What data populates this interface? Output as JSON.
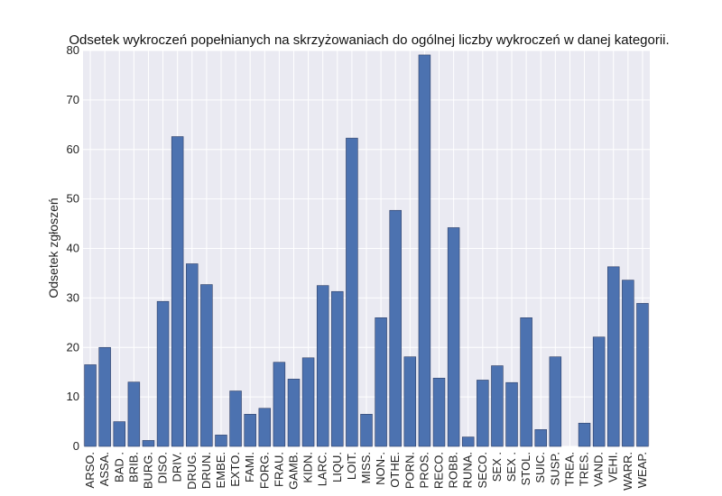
{
  "chart_data": {
    "type": "bar",
    "title": "Odsetek wykroczeń popełnianych na skrzyżowaniach do ogólnej liczby wykroczeń w danej kategorii.",
    "xlabel": "",
    "ylabel": "Odsetek zgłoszeń",
    "ylim": [
      0,
      80
    ],
    "yticks": [
      "0",
      "10",
      "20",
      "30",
      "40",
      "50",
      "60",
      "70",
      "80"
    ],
    "grid": true,
    "bar_color": "#4c72b0",
    "background_color": "#eaeaf2",
    "categories": [
      "ARSO.",
      "ASSA.",
      "BAD .",
      "BRIB.",
      "BURG.",
      "DISO.",
      "DRIV.",
      "DRUG.",
      "DRUN.",
      "EMBE.",
      "EXTO.",
      "FAMI.",
      "FORG.",
      "FRAU.",
      "GAMB.",
      "KIDN.",
      "LARC.",
      "LIQU.",
      "LOIT.",
      "MISS.",
      "NON-.",
      "OTHE.",
      "PORN.",
      "PROS.",
      "RECO.",
      "ROBB.",
      "RUNA.",
      "SECO.",
      "SEX .",
      "SEX .",
      "STOL.",
      "SUIC.",
      "SUSP.",
      "TREA.",
      "TRES.",
      "VAND.",
      "VEHI.",
      "WARR.",
      "WEAP."
    ],
    "values": [
      16.5,
      20.0,
      5.0,
      13.0,
      1.2,
      29.3,
      62.6,
      36.9,
      32.7,
      2.3,
      11.2,
      6.5,
      7.7,
      17.0,
      13.6,
      17.9,
      32.5,
      31.3,
      62.3,
      6.5,
      26.0,
      47.7,
      18.1,
      79.1,
      13.8,
      44.2,
      1.9,
      13.4,
      16.3,
      12.9,
      26.0,
      3.4,
      18.1,
      0,
      4.7,
      22.1,
      36.3,
      33.6,
      28.9
    ]
  }
}
